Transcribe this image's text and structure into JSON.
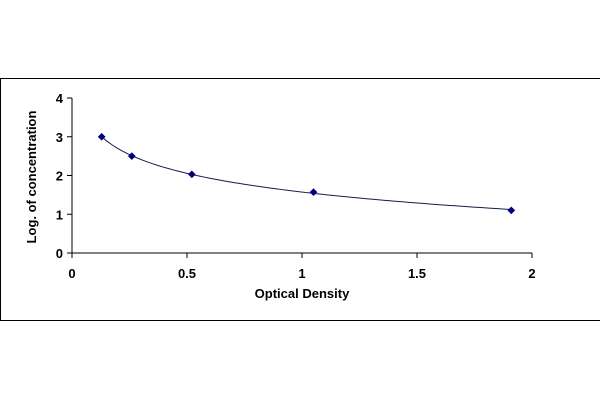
{
  "chart_data": {
    "type": "line",
    "title": "",
    "xlabel": "Optical Density",
    "ylabel": "Log. of concentration",
    "xlim": [
      0,
      2
    ],
    "ylim": [
      0,
      4
    ],
    "x_ticks": [
      "0",
      "0.5",
      "1",
      "1.5",
      "2"
    ],
    "y_ticks": [
      "0",
      "1",
      "2",
      "3",
      "4"
    ],
    "grid": false,
    "legend": "none",
    "series": [
      {
        "x": [
          0.129,
          0.26,
          0.521,
          1.05,
          1.91
        ],
        "y": [
          3.0,
          2.5,
          2.03,
          1.57,
          1.1
        ],
        "marker": "diamond",
        "color": "#000080"
      }
    ]
  }
}
